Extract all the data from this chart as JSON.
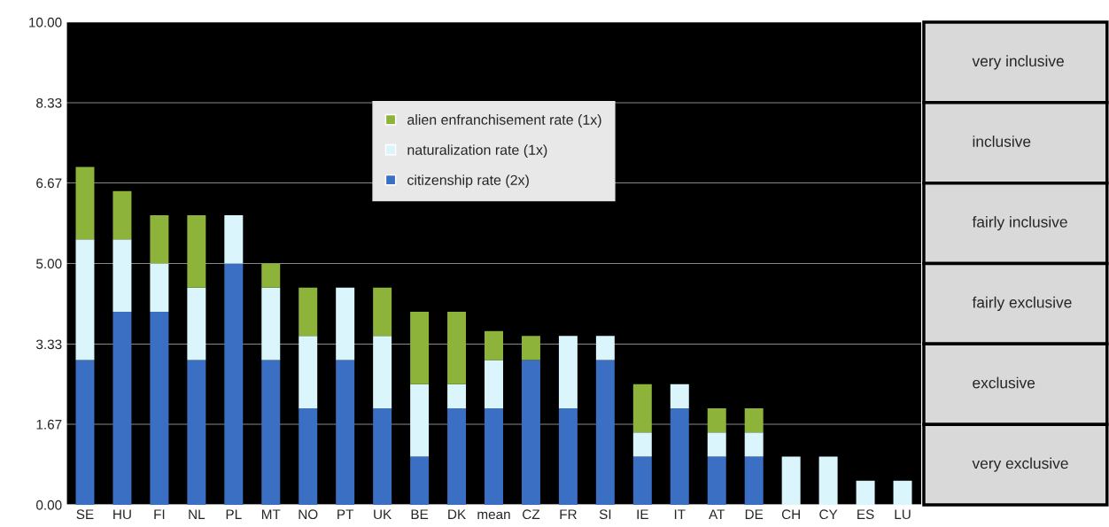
{
  "chart_data": {
    "type": "bar",
    "stacked": true,
    "categories": [
      "SE",
      "HU",
      "FI",
      "NL",
      "PL",
      "MT",
      "NO",
      "PT",
      "UK",
      "BE",
      "DK",
      "mean",
      "CZ",
      "FR",
      "SI",
      "IE",
      "IT",
      "AT",
      "DE",
      "CH",
      "CY",
      "ES",
      "LU"
    ],
    "series": [
      {
        "name": "citizenship rate (2x)",
        "color": "#3a6fc4",
        "values": [
          3,
          4,
          4,
          3,
          5,
          3,
          2,
          3,
          2,
          1,
          2,
          2,
          3,
          2,
          3,
          1,
          2,
          1,
          1,
          0,
          0,
          0,
          0
        ]
      },
      {
        "name": "naturalization rate (1x)",
        "color": "#daf5fb",
        "values": [
          2.5,
          1.5,
          1,
          1.5,
          1,
          1.5,
          1.5,
          1.5,
          1.5,
          1.5,
          0.5,
          1,
          0,
          1.5,
          0.5,
          0.5,
          0.5,
          0.5,
          0.5,
          1,
          1,
          0.5,
          0.5
        ]
      },
      {
        "name": "alien enfranchisement rate (1x)",
        "color": "#8db33a",
        "values": [
          1.5,
          1,
          1,
          1.5,
          0,
          0.5,
          1,
          0,
          1,
          1.5,
          1.5,
          0.6,
          0.5,
          0,
          0,
          1,
          0,
          0.5,
          0.5,
          0,
          0,
          0,
          0
        ]
      }
    ],
    "ylim": [
      0,
      10
    ],
    "yticks": [
      {
        "value": 0,
        "label": "0.00"
      },
      {
        "value": 1.67,
        "label": "1.67"
      },
      {
        "value": 3.33,
        "label": "3.33"
      },
      {
        "value": 5,
        "label": "5.00"
      },
      {
        "value": 6.67,
        "label": "6.67"
      },
      {
        "value": 8.33,
        "label": "8.33"
      },
      {
        "value": 10,
        "label": "10.00"
      }
    ],
    "grid": "y",
    "legend": "top",
    "annotations": [
      "very inclusive",
      "inclusive",
      "fairly inclusive",
      "fairly exclusive",
      "exclusive",
      "very exclusive"
    ]
  }
}
